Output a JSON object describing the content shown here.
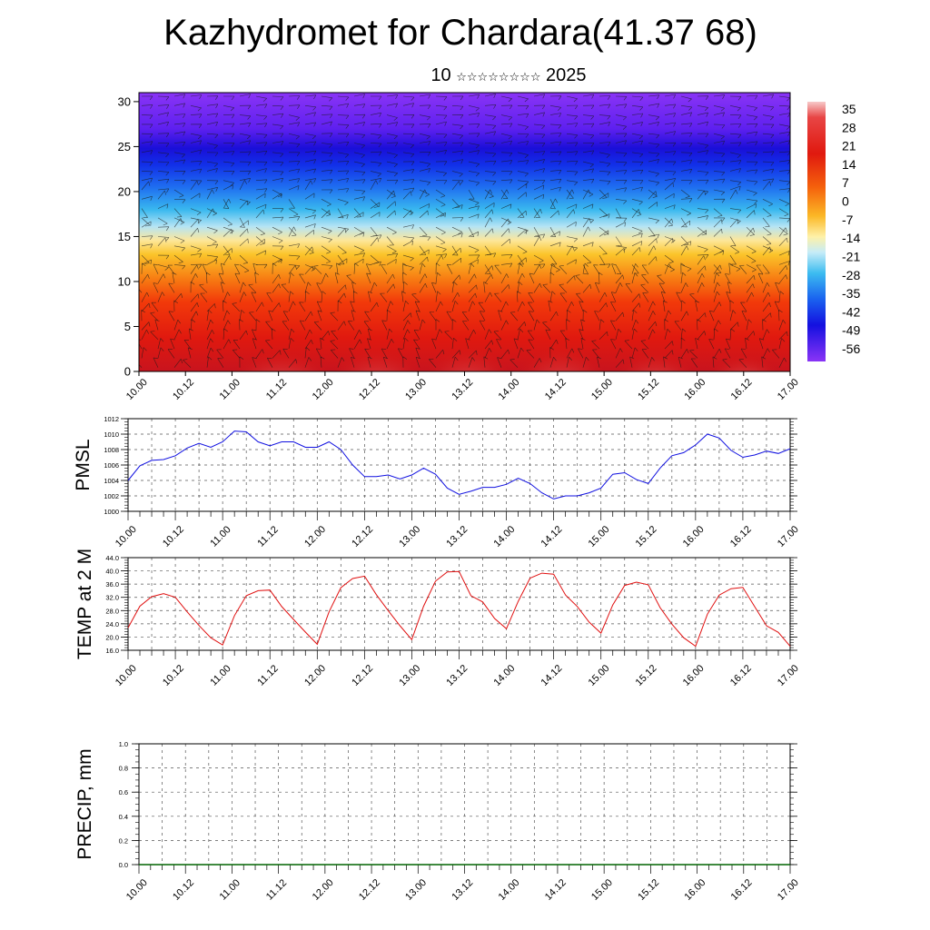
{
  "title": "Kazhydromet for Chardara(41.37 68)",
  "subtitle": {
    "day": "10",
    "stars": "☆☆☆☆☆☆☆☆",
    "year": "2025"
  },
  "colors": {
    "pmsl_line": "#1010e0",
    "temp_line": "#e01010",
    "precip_line": "#006400",
    "grid": "#555555",
    "barb": "#1a1a1a"
  },
  "chart_data": [
    {
      "type": "heatmap",
      "name": "cross-section",
      "x_ticks": [
        "10.00",
        "10.12",
        "11.00",
        "11.12",
        "12.00",
        "12.12",
        "13.00",
        "13.12",
        "14.00",
        "14.12",
        "15.00",
        "15.12",
        "16.00",
        "16.12",
        "17.00"
      ],
      "y_ticks": [
        "0",
        "5",
        "10",
        "15",
        "20",
        "25",
        "30"
      ],
      "ylim": [
        0,
        31
      ],
      "colorbar_labels": [
        "35",
        "28",
        "21",
        "14",
        "7",
        "0",
        "-7",
        "-14",
        "-21",
        "-28",
        "-35",
        "-42",
        "-49",
        "-56"
      ],
      "colorbar_range": [
        -60,
        38
      ]
    },
    {
      "type": "line",
      "name": "PMSL",
      "ylabel": "PMSL",
      "ylim": [
        1000,
        1012
      ],
      "y_ticks": [
        "1000",
        "1002",
        "1004",
        "1006",
        "1008",
        "1010",
        "1012"
      ],
      "x_ticks": [
        "10.00",
        "10.12",
        "11.00",
        "11.12",
        "12.00",
        "12.12",
        "13.00",
        "13.12",
        "14.00",
        "14.12",
        "15.00",
        "15.12",
        "16.00",
        "16.12",
        "17.00"
      ],
      "x": [
        0,
        3,
        6,
        9,
        12,
        15,
        18,
        21,
        24,
        27,
        30,
        33,
        36,
        39,
        42,
        45,
        48,
        51,
        54,
        57,
        60,
        63,
        66,
        69,
        72,
        75,
        78,
        81,
        84,
        87,
        90,
        93,
        96,
        99,
        102,
        105,
        108,
        111,
        114,
        117,
        120,
        123,
        126,
        129,
        132,
        135,
        138,
        141,
        144,
        147,
        150,
        153,
        156,
        159,
        162,
        165,
        168
      ],
      "values": [
        1004.0,
        1005.9,
        1006.6,
        1006.7,
        1007.2,
        1008.2,
        1008.8,
        1008.3,
        1009.0,
        1010.4,
        1010.3,
        1009.0,
        1008.5,
        1009.0,
        1009.0,
        1008.3,
        1008.3,
        1009.0,
        1008.0,
        1006.0,
        1004.5,
        1004.5,
        1004.7,
        1004.2,
        1004.7,
        1005.6,
        1004.8,
        1003.0,
        1002.2,
        1002.6,
        1003.1,
        1003.1,
        1003.5,
        1004.3,
        1003.6,
        1002.4,
        1001.6,
        1002.0,
        1002.0,
        1002.4,
        1003.0,
        1004.8,
        1005.0,
        1004.1,
        1003.6,
        1005.6,
        1007.2,
        1007.6,
        1008.6,
        1010.0,
        1009.5,
        1007.9,
        1007.0,
        1007.3,
        1007.8,
        1007.5,
        1008.1
      ]
    },
    {
      "type": "line",
      "name": "TEMP at 2 M",
      "ylabel": "TEMP at 2 M",
      "ylim": [
        16,
        44
      ],
      "y_ticks": [
        "16.0",
        "20.0",
        "24.0",
        "28.0",
        "32.0",
        "36.0",
        "40.0",
        "44.0"
      ],
      "x_ticks": [
        "10.00",
        "10.12",
        "11.00",
        "11.12",
        "12.00",
        "12.12",
        "13.00",
        "13.12",
        "14.00",
        "14.12",
        "15.00",
        "15.12",
        "16.00",
        "16.12",
        "17.00"
      ],
      "x": [
        0,
        3,
        6,
        9,
        12,
        15,
        18,
        21,
        24,
        27,
        30,
        33,
        36,
        39,
        42,
        45,
        48,
        51,
        54,
        57,
        60,
        63,
        66,
        69,
        72,
        75,
        78,
        81,
        84,
        87,
        90,
        93,
        96,
        99,
        102,
        105,
        108,
        111,
        114,
        117,
        120,
        123,
        126,
        129,
        132,
        135,
        138,
        141,
        144,
        147,
        150,
        153,
        156,
        159,
        162,
        165,
        168
      ],
      "values": [
        22.8,
        29.3,
        32.2,
        33.1,
        32.0,
        27.6,
        23.5,
        19.8,
        17.6,
        26.5,
        32.5,
        34.0,
        34.2,
        29.2,
        25.3,
        21.5,
        17.8,
        27.6,
        34.9,
        37.7,
        38.4,
        32.8,
        28.0,
        23.4,
        19.2,
        29.3,
        36.9,
        39.7,
        39.8,
        32.5,
        30.6,
        25.6,
        22.5,
        30.8,
        37.8,
        39.3,
        39.0,
        32.7,
        29.2,
        24.5,
        21.2,
        29.7,
        35.6,
        36.6,
        35.8,
        28.9,
        23.9,
        19.8,
        17.2,
        26.9,
        32.7,
        34.6,
        35.0,
        29.2,
        23.4,
        21.4,
        17.2
      ]
    },
    {
      "type": "line",
      "name": "PRECIP",
      "ylabel": "PRECIP, mm",
      "ylim": [
        0,
        1
      ],
      "y_ticks": [
        "0.0",
        "0.2",
        "0.4",
        "0.6",
        "0.8",
        "1.0"
      ],
      "x_ticks": [
        "10.00",
        "10.12",
        "11.00",
        "11.12",
        "12.00",
        "12.12",
        "13.00",
        "13.12",
        "14.00",
        "14.12",
        "15.00",
        "15.12",
        "16.00",
        "16.12",
        "17.00"
      ],
      "x": [
        0,
        168
      ],
      "values": [
        0.0,
        0.0
      ]
    }
  ]
}
